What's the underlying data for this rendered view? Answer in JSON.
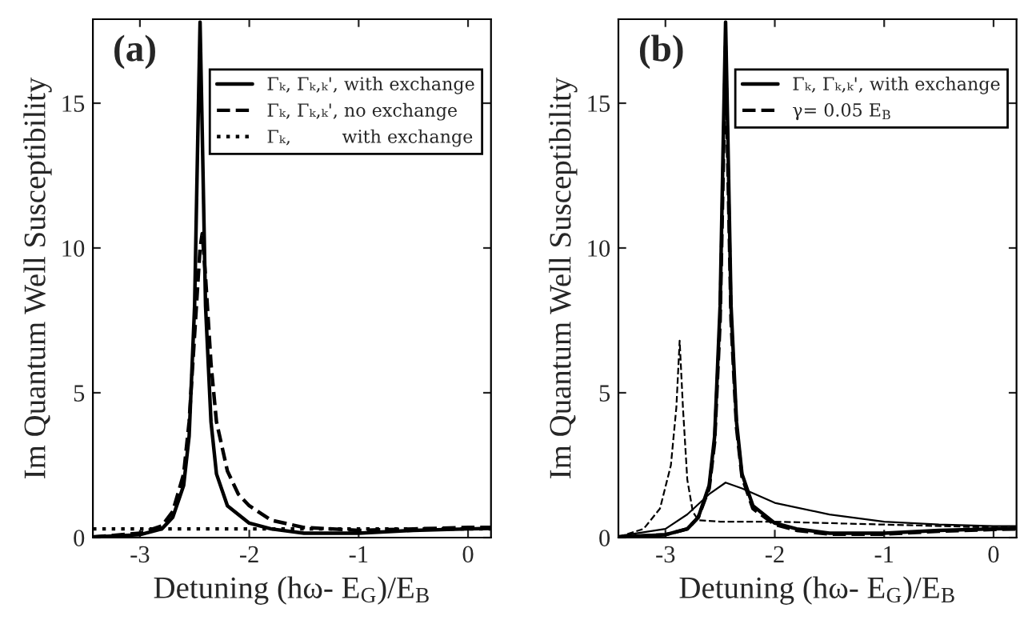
{
  "chart_data": [
    {
      "type": "line",
      "xlabel": "Detuning (hω- E$_{G}$)/E$_{B}$",
      "ylabel": "Im Quantum Well Susceptibility",
      "annotations": [
        "(a)"
      ],
      "xlim": [
        -3.43,
        0.21
      ],
      "ylim": [
        0,
        17.9
      ],
      "xticks": [
        -3,
        -2,
        -1,
        0
      ],
      "yticks": [
        0,
        5,
        10,
        15
      ],
      "legend": "top right",
      "grid": false,
      "series": [
        {
          "name": "Γₖ, Γₖ,ₖ', with exchange",
          "color": "#000000",
          "line_style": "solid",
          "x": [
            -3.43,
            -3.0,
            -2.8,
            -2.7,
            -2.6,
            -2.55,
            -2.5,
            -2.47,
            -2.45,
            -2.43,
            -2.4,
            -2.35,
            -2.3,
            -2.2,
            -2.0,
            -1.8,
            -1.5,
            -1.0,
            -0.5,
            0.0,
            0.21
          ],
          "values": [
            0.02,
            0.1,
            0.3,
            0.7,
            1.8,
            3.5,
            8,
            14,
            17.8,
            14,
            8,
            4,
            2.2,
            1.1,
            0.5,
            0.3,
            0.15,
            0.15,
            0.25,
            0.3,
            0.32
          ]
        },
        {
          "name": "Γₖ, Γₖ,ₖ', no exchange",
          "color": "#000000",
          "line_style": "dashed",
          "x": [
            -3.43,
            -3.0,
            -2.8,
            -2.7,
            -2.6,
            -2.55,
            -2.5,
            -2.45,
            -2.43,
            -2.4,
            -2.35,
            -2.3,
            -2.2,
            -2.1,
            -2.0,
            -1.8,
            -1.5,
            -1.0,
            -0.5,
            0.0,
            0.21
          ],
          "values": [
            0.02,
            0.15,
            0.4,
            0.9,
            2.2,
            4,
            7,
            10,
            10.5,
            9,
            6,
            4,
            2.3,
            1.5,
            1.1,
            0.6,
            0.35,
            0.25,
            0.3,
            0.35,
            0.35
          ]
        },
        {
          "name": "Γₖ,         with exchange",
          "color": "#000000",
          "line_style": "dotted",
          "x": [
            -3.43,
            -2.0,
            0.21
          ],
          "values": [
            0.3,
            0.3,
            0.3
          ]
        }
      ]
    },
    {
      "type": "line",
      "xlabel": "Detuning (hω- E$_{G}$)/E$_{B}$",
      "ylabel": "Im Quantum Well Susceptibility",
      "annotations": [
        "(b)"
      ],
      "xlim": [
        -3.43,
        0.21
      ],
      "ylim": [
        0,
        17.9
      ],
      "xticks": [
        -3,
        -2,
        -1,
        0
      ],
      "yticks": [
        0,
        5,
        10,
        15
      ],
      "legend": "top right",
      "grid": false,
      "series": [
        {
          "name": "Γₖ, Γₖ,ₖ', with exchange",
          "color": "#000000",
          "line_style": "solid",
          "x": [
            -3.43,
            -3.0,
            -2.8,
            -2.7,
            -2.6,
            -2.55,
            -2.5,
            -2.47,
            -2.45,
            -2.43,
            -2.4,
            -2.35,
            -2.3,
            -2.2,
            -2.0,
            -1.8,
            -1.5,
            -1.0,
            -0.5,
            0.0,
            0.21
          ],
          "values": [
            0.02,
            0.1,
            0.3,
            0.7,
            1.8,
            3.5,
            8,
            14,
            17.8,
            14,
            8,
            4,
            2.2,
            1.1,
            0.5,
            0.3,
            0.15,
            0.15,
            0.25,
            0.3,
            0.32
          ]
        },
        {
          "name": "γ= 0.05 E$_{B}$",
          "color": "#000000",
          "line_style": "dashed",
          "x": [
            -3.43,
            -3.0,
            -2.8,
            -2.7,
            -2.6,
            -2.55,
            -2.5,
            -2.47,
            -2.45,
            -2.43,
            -2.4,
            -2.35,
            -2.3,
            -2.2,
            -2.0,
            -1.8,
            -1.5,
            -1.0,
            -0.5,
            0.0,
            0.21
          ],
          "values": [
            0.02,
            0.1,
            0.3,
            0.7,
            1.7,
            3.3,
            7.5,
            13,
            17,
            13,
            7.5,
            3.8,
            2.1,
            1.0,
            0.45,
            0.25,
            0.12,
            0.12,
            0.22,
            0.28,
            0.3
          ]
        },
        {
          "color": "#000000",
          "line_style": "solid",
          "x": [
            -3.43,
            -3.0,
            -2.8,
            -2.6,
            -2.45,
            -2.3,
            -2.0,
            -1.5,
            -1.0,
            -0.5,
            0.0,
            0.21
          ],
          "values": [
            0.05,
            0.3,
            0.8,
            1.5,
            1.9,
            1.7,
            1.2,
            0.8,
            0.55,
            0.45,
            0.4,
            0.4
          ]
        },
        {
          "color": "#000000",
          "line_style": "dashed",
          "x": [
            -3.43,
            -3.2,
            -3.05,
            -2.95,
            -2.9,
            -2.87,
            -2.84,
            -2.8,
            -2.75,
            -2.7,
            -2.5,
            -2.0,
            -1.5,
            -1.0,
            0.0,
            0.21
          ],
          "values": [
            0.02,
            0.3,
            1,
            2.5,
            4.5,
            6.8,
            4.5,
            2,
            0.9,
            0.6,
            0.55,
            0.55,
            0.5,
            0.45,
            0.35,
            0.35
          ]
        }
      ]
    }
  ]
}
